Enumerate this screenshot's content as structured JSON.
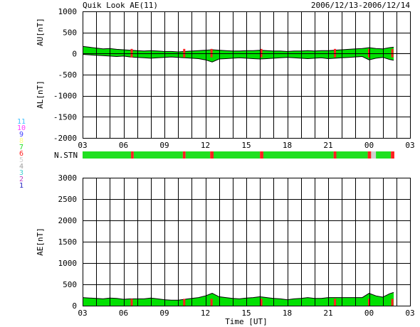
{
  "header": {
    "title": "Quik Look AE(11)",
    "date_range": "2006/12/13-2006/12/14"
  },
  "colors": {
    "data_fill": "#00e000",
    "missing": "#ff2020",
    "partial": "#ffb0b0",
    "trace": "#000000"
  },
  "stations": {
    "label": "N.STN",
    "levels": [
      {
        "label": "11",
        "color": "#40c0ff"
      },
      {
        "label": "10",
        "color": "#ff40ff"
      },
      {
        "label": "9",
        "color": "#4040ff"
      },
      {
        "label": "8",
        "color": "#ffff80"
      },
      {
        "label": "7",
        "color": "#20e020"
      },
      {
        "label": "6",
        "color": "#ff2020"
      },
      {
        "label": "5",
        "color": "#d0d0d0"
      },
      {
        "label": "4",
        "color": "#a0a0a0"
      },
      {
        "label": "3",
        "color": "#40d0d0"
      },
      {
        "label": "2",
        "color": "#c040c0"
      },
      {
        "label": "1",
        "color": "#2020c0"
      }
    ],
    "segments": [
      {
        "start": 3.0,
        "end": 6.55,
        "level": 7
      },
      {
        "start": 6.55,
        "end": 6.75,
        "level": 6
      },
      {
        "start": 6.75,
        "end": 10.35,
        "level": 7
      },
      {
        "start": 10.35,
        "end": 10.55,
        "level": 6
      },
      {
        "start": 10.55,
        "end": 12.35,
        "level": 7
      },
      {
        "start": 12.35,
        "end": 12.6,
        "level": 6
      },
      {
        "start": 12.6,
        "end": 16.0,
        "level": 7
      },
      {
        "start": 16.0,
        "end": 16.25,
        "level": 6
      },
      {
        "start": 16.25,
        "end": 21.4,
        "level": 7
      },
      {
        "start": 21.4,
        "end": 21.6,
        "level": 6
      },
      {
        "start": 21.6,
        "end": 23.9,
        "level": 7
      },
      {
        "start": 23.9,
        "end": 24.15,
        "level": 6
      },
      {
        "start": 24.15,
        "end": 24.5,
        "level": 5
      },
      {
        "start": 24.5,
        "end": 25.6,
        "level": 7
      },
      {
        "start": 25.6,
        "end": 25.85,
        "level": 6
      }
    ],
    "missing_times": [
      6.6,
      10.45,
      12.45,
      16.1,
      21.5,
      24.0,
      25.7
    ]
  },
  "chart_data": [
    {
      "type": "area",
      "ylabel_top": "AU[nT]",
      "ylabel_bottom": "AL[nT]",
      "xlim": [
        3,
        27
      ],
      "ylim": [
        -2000,
        1000
      ],
      "yticks": [
        1000,
        500,
        0,
        -500,
        -1000,
        -1500,
        -2000
      ],
      "xtick_labels": [
        "03",
        "06",
        "09",
        "12",
        "15",
        "18",
        "21",
        "00",
        "03"
      ],
      "grid": true,
      "series": [
        {
          "x": [
            3.0,
            3.5,
            4.0,
            4.5,
            5.0,
            5.5,
            6.0,
            6.5,
            7.0,
            7.5,
            8.0,
            8.5,
            9.0,
            9.5,
            10.0,
            10.5,
            11.0,
            11.5,
            12.0,
            12.5,
            13.0,
            13.5,
            14.0,
            14.5,
            15.0,
            15.5,
            16.0,
            16.5,
            17.0,
            17.5,
            18.0,
            18.5,
            19.0,
            19.5,
            20.0,
            20.5,
            21.0,
            21.5,
            22.0,
            22.5,
            23.0,
            23.5,
            24.0,
            24.5,
            25.0,
            25.5,
            25.8
          ],
          "values": [
            170,
            150,
            130,
            110,
            120,
            100,
            90,
            80,
            70,
            60,
            70,
            60,
            50,
            50,
            40,
            50,
            60,
            70,
            80,
            90,
            80,
            70,
            60,
            60,
            70,
            70,
            80,
            70,
            60,
            60,
            50,
            60,
            60,
            70,
            60,
            70,
            70,
            80,
            90,
            100,
            110,
            120,
            140,
            120,
            110,
            140,
            150
          ]
        },
        {
          "x": [
            3.0,
            3.5,
            4.0,
            4.5,
            5.0,
            5.5,
            6.0,
            6.5,
            7.0,
            7.5,
            8.0,
            8.5,
            9.0,
            9.5,
            10.0,
            10.5,
            11.0,
            11.5,
            12.0,
            12.5,
            13.0,
            13.5,
            14.0,
            14.5,
            15.0,
            15.5,
            16.0,
            16.5,
            17.0,
            17.5,
            18.0,
            18.5,
            19.0,
            19.5,
            20.0,
            20.5,
            21.0,
            21.5,
            22.0,
            22.5,
            23.0,
            23.5,
            24.0,
            24.5,
            25.0,
            25.5,
            25.8
          ],
          "values": [
            -20,
            -30,
            -40,
            -50,
            -60,
            -70,
            -60,
            -80,
            -90,
            -100,
            -110,
            -100,
            -90,
            -80,
            -90,
            -100,
            -110,
            -120,
            -150,
            -200,
            -130,
            -120,
            -110,
            -100,
            -110,
            -120,
            -130,
            -120,
            -110,
            -100,
            -90,
            -100,
            -110,
            -120,
            -110,
            -100,
            -120,
            -110,
            -100,
            -90,
            -80,
            -70,
            -150,
            -110,
            -90,
            -140,
            -160
          ]
        }
      ]
    },
    {
      "type": "area",
      "ylabel": "AE[nT]",
      "xlabel": "Time [UT]",
      "xlim": [
        3,
        27
      ],
      "ylim": [
        0,
        3000
      ],
      "yticks": [
        3000,
        2500,
        2000,
        1500,
        1000,
        500,
        0
      ],
      "xtick_labels": [
        "03",
        "06",
        "09",
        "12",
        "15",
        "18",
        "21",
        "00",
        "03"
      ],
      "grid": true,
      "series": [
        {
          "x": [
            3.0,
            3.5,
            4.0,
            4.5,
            5.0,
            5.5,
            6.0,
            6.5,
            7.0,
            7.5,
            8.0,
            8.5,
            9.0,
            9.5,
            10.0,
            10.5,
            11.0,
            11.5,
            12.0,
            12.5,
            13.0,
            13.5,
            14.0,
            14.5,
            15.0,
            15.5,
            16.0,
            16.5,
            17.0,
            17.5,
            18.0,
            18.5,
            19.0,
            19.5,
            20.0,
            20.5,
            21.0,
            21.5,
            22.0,
            22.5,
            23.0,
            23.5,
            24.0,
            24.5,
            25.0,
            25.5,
            25.8
          ],
          "values": [
            190,
            180,
            170,
            160,
            180,
            170,
            150,
            160,
            160,
            160,
            180,
            160,
            140,
            130,
            130,
            150,
            170,
            190,
            230,
            290,
            210,
            190,
            170,
            160,
            180,
            190,
            210,
            190,
            170,
            160,
            140,
            160,
            170,
            190,
            170,
            170,
            190,
            190,
            190,
            190,
            190,
            190,
            290,
            230,
            200,
            280,
            310
          ]
        }
      ]
    }
  ]
}
